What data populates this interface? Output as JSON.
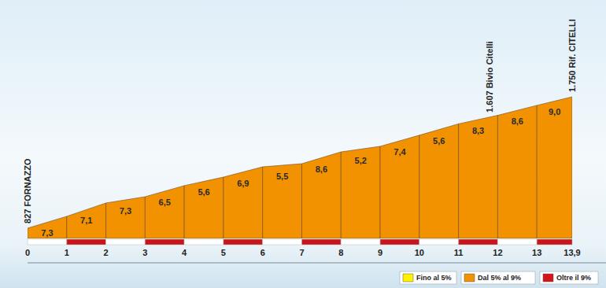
{
  "chart_data": {
    "type": "area",
    "x": [
      0,
      1,
      2,
      3,
      4,
      5,
      6,
      7,
      8,
      9,
      10,
      11,
      12,
      13,
      13.9
    ],
    "values": [
      827,
      910,
      1004,
      1048,
      1126,
      1186,
      1258,
      1280,
      1363,
      1402,
      1480,
      1560,
      1620,
      1690,
      1750
    ],
    "gradients": [
      7.3,
      7.1,
      7.3,
      6.5,
      5.6,
      6.9,
      5.5,
      8.6,
      5.2,
      7.4,
      5.6,
      8.3,
      8.6,
      9.0
    ],
    "gradient_labels": [
      "7,3",
      "7,1",
      "7,3",
      "6,5",
      "5,6",
      "6,9",
      "5,5",
      "8,6",
      "5,2",
      "7,4",
      "5,6",
      "8,3",
      "8,6",
      "9,0"
    ],
    "colors": [
      "#f39200",
      "#f39200",
      "#f39200",
      "#f39200",
      "#f39200",
      "#f39200",
      "#f39200",
      "#f39200",
      "#f39200",
      "#f39200",
      "#f39200",
      "#f39200",
      "#f39200",
      "#f39200"
    ],
    "xlim": [
      0,
      13.9
    ],
    "xticks": [
      0,
      1,
      2,
      3,
      4,
      5,
      6,
      7,
      8,
      9,
      10,
      11,
      12,
      13,
      {
        "value": 13.9,
        "label": "13,9"
      }
    ],
    "ylim": [
      755,
      2375
    ],
    "annotations": [
      {
        "x": 0,
        "y": 827,
        "text": "827 FORNAZZO"
      },
      {
        "x": 11.8,
        "y": 1607,
        "text": "1.607 Bivio Citelli"
      },
      {
        "x": 13.9,
        "y": 1750,
        "text": "1.750 Rif. CITELLI"
      }
    ],
    "legend_entries": [
      {
        "label": "Fino al 5%",
        "color": "#fff200"
      },
      {
        "label": "Dal 5% al 9%",
        "color": "#f39200"
      },
      {
        "label": "Oltre il 9%",
        "color": "#d5151c"
      }
    ],
    "legend": "bottom right",
    "grid": false,
    "tick_labels": "x"
  }
}
